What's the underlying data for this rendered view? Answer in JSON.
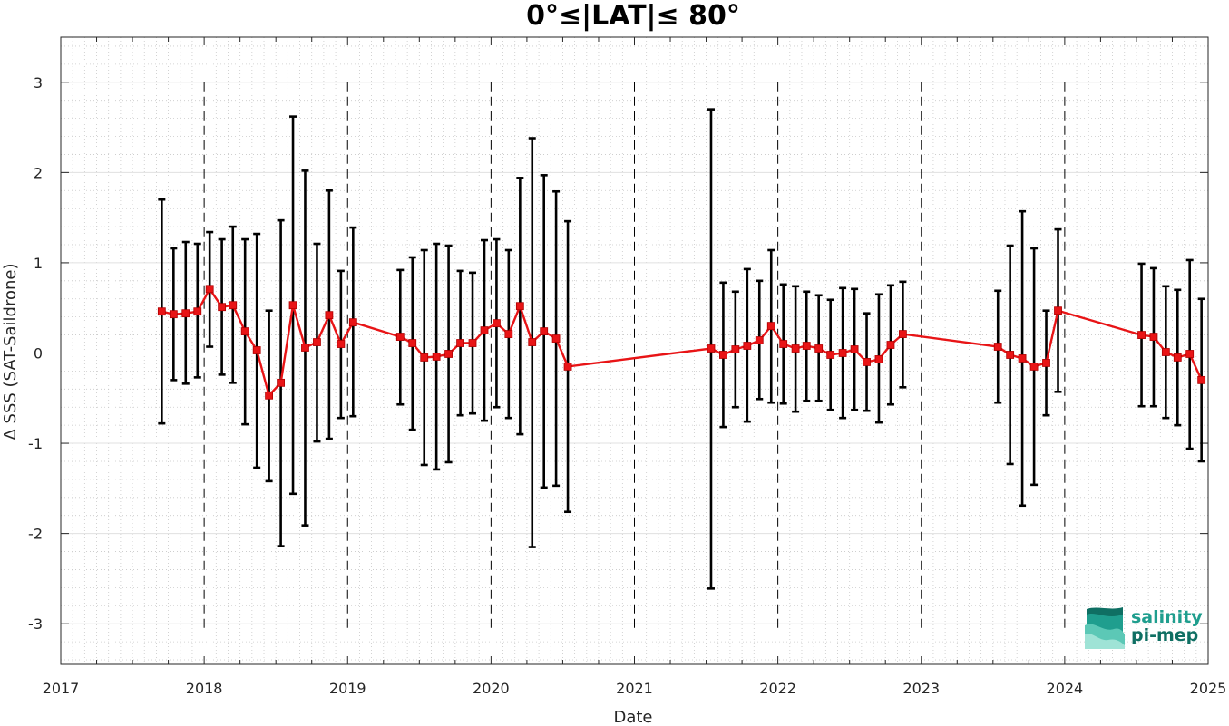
{
  "chart_data": {
    "type": "line",
    "title": "0°≤|LAT|≤ 80°",
    "xlabel": "Date",
    "ylabel": "Δ SSS (SAT-Saildrone)",
    "xlim": [
      "2017-01-01",
      "2025-01-01"
    ],
    "ylim": [
      -3.45,
      3.5
    ],
    "x_ticks": [
      "2017",
      "2018",
      "2019",
      "2020",
      "2021",
      "2022",
      "2023",
      "2024",
      "2025"
    ],
    "y_ticks": [
      "3",
      "2",
      "1",
      "0",
      "-1",
      "-2",
      "-3"
    ],
    "grid": "minor dotted",
    "year_separators": "dashed vertical lines at each year boundary",
    "zero_line": "dashed horizontal line at 0",
    "series": [
      {
        "color": "#e81416",
        "marker": "square",
        "errorbar_color": "#000000",
        "points": [
          {
            "date": "2017-09-15",
            "mean": 0.46,
            "lower": -0.78,
            "upper": 1.7
          },
          {
            "date": "2017-10-15",
            "mean": 0.43,
            "lower": -0.3,
            "upper": 1.16
          },
          {
            "date": "2017-11-15",
            "mean": 0.44,
            "lower": -0.34,
            "upper": 1.23
          },
          {
            "date": "2017-12-15",
            "mean": 0.46,
            "lower": -0.27,
            "upper": 1.21
          },
          {
            "date": "2018-01-15",
            "mean": 0.71,
            "lower": 0.07,
            "upper": 1.34
          },
          {
            "date": "2018-02-15",
            "mean": 0.51,
            "lower": -0.24,
            "upper": 1.26
          },
          {
            "date": "2018-03-15",
            "mean": 0.53,
            "lower": -0.33,
            "upper": 1.4
          },
          {
            "date": "2018-04-15",
            "mean": 0.24,
            "lower": -0.79,
            "upper": 1.26
          },
          {
            "date": "2018-05-15",
            "mean": 0.03,
            "lower": -1.27,
            "upper": 1.32
          },
          {
            "date": "2018-06-15",
            "mean": -0.47,
            "lower": -1.42,
            "upper": 0.47
          },
          {
            "date": "2018-07-15",
            "mean": -0.33,
            "lower": -2.14,
            "upper": 1.47
          },
          {
            "date": "2018-08-15",
            "mean": 0.53,
            "lower": -1.56,
            "upper": 2.62
          },
          {
            "date": "2018-09-15",
            "mean": 0.06,
            "lower": -1.91,
            "upper": 2.02
          },
          {
            "date": "2018-10-15",
            "mean": 0.12,
            "lower": -0.98,
            "upper": 1.21
          },
          {
            "date": "2018-11-15",
            "mean": 0.42,
            "lower": -0.95,
            "upper": 1.8
          },
          {
            "date": "2018-12-15",
            "mean": 0.1,
            "lower": -0.72,
            "upper": 0.91
          },
          {
            "date": "2019-01-15",
            "mean": 0.34,
            "lower": -0.7,
            "upper": 1.39
          },
          {
            "date": "2019-05-15",
            "mean": 0.18,
            "lower": -0.57,
            "upper": 0.92
          },
          {
            "date": "2019-06-15",
            "mean": 0.11,
            "lower": -0.85,
            "upper": 1.06
          },
          {
            "date": "2019-07-15",
            "mean": -0.05,
            "lower": -1.24,
            "upper": 1.14
          },
          {
            "date": "2019-08-15",
            "mean": -0.04,
            "lower": -1.29,
            "upper": 1.21
          },
          {
            "date": "2019-09-15",
            "mean": -0.01,
            "lower": -1.21,
            "upper": 1.19
          },
          {
            "date": "2019-10-15",
            "mean": 0.11,
            "lower": -0.69,
            "upper": 0.91
          },
          {
            "date": "2019-11-15",
            "mean": 0.11,
            "lower": -0.67,
            "upper": 0.89
          },
          {
            "date": "2019-12-15",
            "mean": 0.25,
            "lower": -0.75,
            "upper": 1.25
          },
          {
            "date": "2020-01-15",
            "mean": 0.33,
            "lower": -0.6,
            "upper": 1.26
          },
          {
            "date": "2020-02-15",
            "mean": 0.21,
            "lower": -0.72,
            "upper": 1.14
          },
          {
            "date": "2020-03-15",
            "mean": 0.52,
            "lower": -0.9,
            "upper": 1.94
          },
          {
            "date": "2020-04-15",
            "mean": 0.12,
            "lower": -2.15,
            "upper": 2.38
          },
          {
            "date": "2020-05-15",
            "mean": 0.24,
            "lower": -1.49,
            "upper": 1.97
          },
          {
            "date": "2020-06-15",
            "mean": 0.16,
            "lower": -1.47,
            "upper": 1.79
          },
          {
            "date": "2020-07-15",
            "mean": -0.15,
            "lower": -1.76,
            "upper": 1.46
          },
          {
            "date": "2021-07-15",
            "mean": 0.05,
            "lower": -2.61,
            "upper": 2.7
          },
          {
            "date": "2021-08-15",
            "mean": -0.02,
            "lower": -0.82,
            "upper": 0.78
          },
          {
            "date": "2021-09-15",
            "mean": 0.04,
            "lower": -0.6,
            "upper": 0.68
          },
          {
            "date": "2021-10-15",
            "mean": 0.08,
            "lower": -0.76,
            "upper": 0.93
          },
          {
            "date": "2021-11-15",
            "mean": 0.14,
            "lower": -0.51,
            "upper": 0.8
          },
          {
            "date": "2021-12-15",
            "mean": 0.3,
            "lower": -0.55,
            "upper": 1.14
          },
          {
            "date": "2022-01-15",
            "mean": 0.1,
            "lower": -0.56,
            "upper": 0.76
          },
          {
            "date": "2022-02-15",
            "mean": 0.05,
            "lower": -0.65,
            "upper": 0.74
          },
          {
            "date": "2022-03-15",
            "mean": 0.08,
            "lower": -0.53,
            "upper": 0.68
          },
          {
            "date": "2022-04-15",
            "mean": 0.05,
            "lower": -0.53,
            "upper": 0.64
          },
          {
            "date": "2022-05-15",
            "mean": -0.02,
            "lower": -0.63,
            "upper": 0.59
          },
          {
            "date": "2022-06-15",
            "mean": 0.0,
            "lower": -0.72,
            "upper": 0.72
          },
          {
            "date": "2022-07-15",
            "mean": 0.04,
            "lower": -0.63,
            "upper": 0.71
          },
          {
            "date": "2022-08-15",
            "mean": -0.1,
            "lower": -0.64,
            "upper": 0.44
          },
          {
            "date": "2022-09-15",
            "mean": -0.07,
            "lower": -0.77,
            "upper": 0.65
          },
          {
            "date": "2022-10-15",
            "mean": 0.09,
            "lower": -0.57,
            "upper": 0.75
          },
          {
            "date": "2022-11-15",
            "mean": 0.21,
            "lower": -0.38,
            "upper": 0.79
          },
          {
            "date": "2023-07-15",
            "mean": 0.07,
            "lower": -0.55,
            "upper": 0.69
          },
          {
            "date": "2023-08-15",
            "mean": -0.02,
            "lower": -1.23,
            "upper": 1.19
          },
          {
            "date": "2023-09-15",
            "mean": -0.06,
            "lower": -1.69,
            "upper": 1.57
          },
          {
            "date": "2023-10-15",
            "mean": -0.15,
            "lower": -1.46,
            "upper": 1.16
          },
          {
            "date": "2023-11-15",
            "mean": -0.11,
            "lower": -0.69,
            "upper": 0.47
          },
          {
            "date": "2023-12-15",
            "mean": 0.47,
            "lower": -0.43,
            "upper": 1.37
          },
          {
            "date": "2024-07-15",
            "mean": 0.2,
            "lower": -0.59,
            "upper": 0.99
          },
          {
            "date": "2024-08-15",
            "mean": 0.18,
            "lower": -0.59,
            "upper": 0.94
          },
          {
            "date": "2024-09-15",
            "mean": 0.01,
            "lower": -0.72,
            "upper": 0.74
          },
          {
            "date": "2024-10-15",
            "mean": -0.05,
            "lower": -0.8,
            "upper": 0.7
          },
          {
            "date": "2024-11-15",
            "mean": -0.01,
            "lower": -1.06,
            "upper": 1.03
          },
          {
            "date": "2024-12-15",
            "mean": -0.3,
            "lower": -1.2,
            "upper": 0.6
          }
        ]
      }
    ]
  },
  "logo": {
    "line1": "salinity",
    "line2": "pi-mep",
    "color": "#1f9e8e"
  }
}
